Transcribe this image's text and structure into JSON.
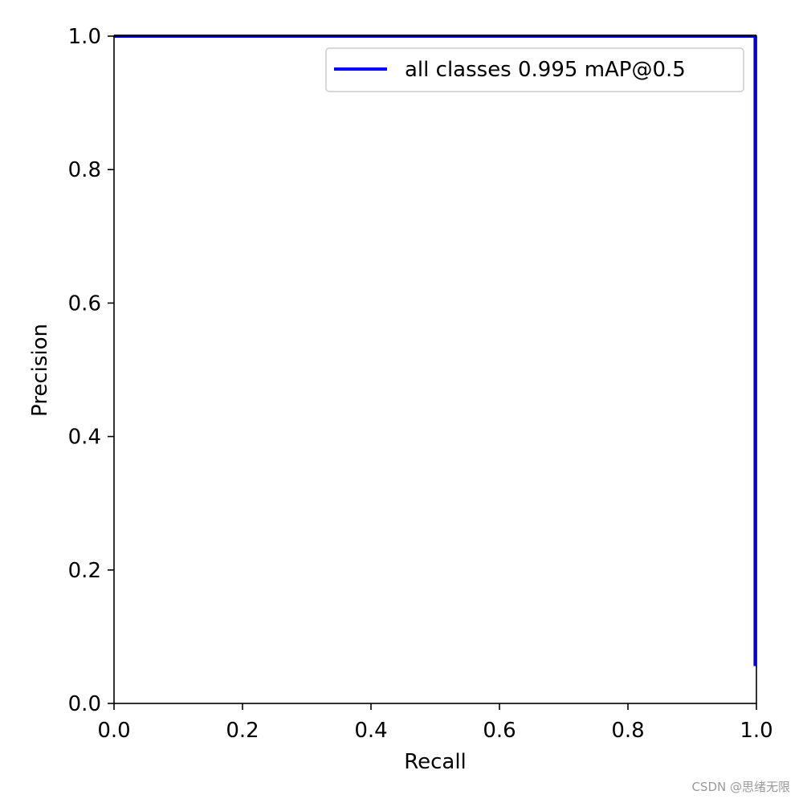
{
  "chart_data": {
    "type": "line",
    "xlabel": "Recall",
    "ylabel": "Precision",
    "xlim": [
      0.0,
      1.0
    ],
    "ylim": [
      0.0,
      1.0
    ],
    "xticks": [
      "0.0",
      "0.2",
      "0.4",
      "0.6",
      "0.8",
      "1.0"
    ],
    "yticks": [
      "0.0",
      "0.2",
      "0.4",
      "0.6",
      "0.8",
      "1.0"
    ],
    "grid": false,
    "legend_position": "top-right",
    "series": [
      {
        "name": "all classes 0.995 mAP@0.5",
        "color": "#0000ff",
        "x": [
          0.0,
          1.0,
          0.998,
          0.998
        ],
        "y": [
          1.0,
          1.0,
          1.0,
          0.056
        ]
      }
    ]
  },
  "watermark": "CSDN @思绪无限"
}
